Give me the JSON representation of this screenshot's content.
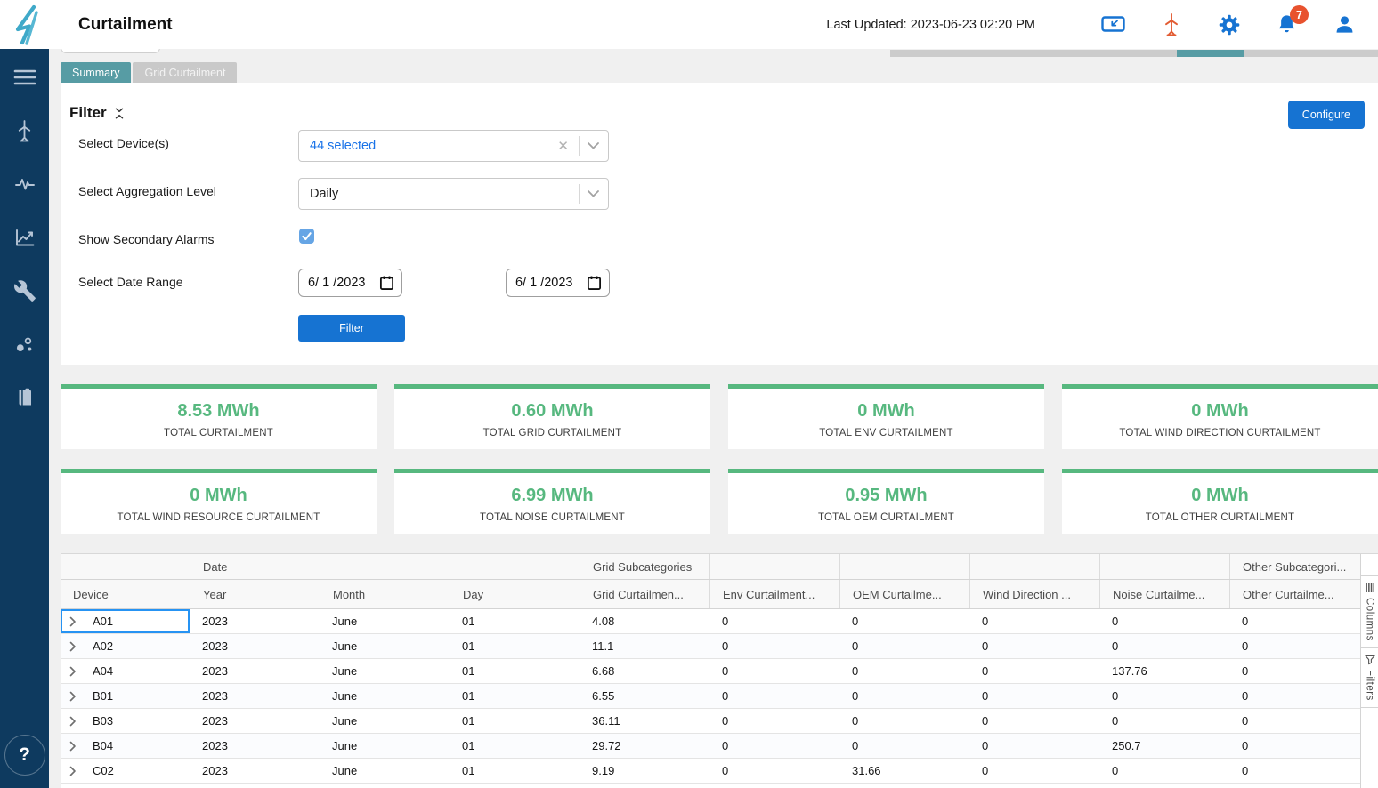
{
  "header": {
    "app_title": "Curtailment",
    "last_updated": "Last Updated: 2023-06-23 02:20 PM",
    "notification_count": "7",
    "colors": {
      "icon_blue": "#1673d2",
      "turbine_orange": "#e25c33",
      "badge_red": "#e8522e",
      "logo_teal": "#3fa9c9"
    }
  },
  "sidebar": {
    "help_label": "?",
    "items": [
      "menu",
      "wind-turbine",
      "activity-pulse",
      "line-chart",
      "wrench",
      "scatter-dots",
      "logbook"
    ]
  },
  "tabs": [
    {
      "label": "Summary",
      "active": true
    },
    {
      "label": "Grid Curtailment",
      "active": false
    }
  ],
  "filter_panel": {
    "title": "Filter",
    "configure_button": "Configure",
    "device_label": "Select Device(s)",
    "device_value": "44 selected",
    "aggregation_label": "Select Aggregation Level",
    "aggregation_value": "Daily",
    "secondary_alarms_label": "Show Secondary Alarms",
    "secondary_alarms_checked": true,
    "date_range_label": "Select Date Range",
    "date_start": "6/ 1 /2023",
    "date_end": "6/ 1 /2023",
    "filter_button": "Filter"
  },
  "stat_cards": [
    {
      "value": "8.53 MWh",
      "label": "TOTAL CURTAILMENT"
    },
    {
      "value": "0.60 MWh",
      "label": "TOTAL GRID CURTAILMENT"
    },
    {
      "value": "0 MWh",
      "label": "TOTAL ENV CURTAILMENT"
    },
    {
      "value": "0 MWh",
      "label": "TOTAL WIND DIRECTION CURTAILMENT"
    },
    {
      "value": "0 MWh",
      "label": "TOTAL WIND RESOURCE CURTAILMENT"
    },
    {
      "value": "6.99 MWh",
      "label": "TOTAL NOISE CURTAILMENT"
    },
    {
      "value": "0.95 MWh",
      "label": "TOTAL OEM CURTAILMENT"
    },
    {
      "value": "0 MWh",
      "label": "TOTAL OTHER CURTAILMENT"
    }
  ],
  "accent_colors": {
    "card_green": "#57b87f",
    "tab_teal": "#579ca4",
    "button_blue": "#1673d2"
  },
  "table": {
    "group_headers": [
      {
        "label": "",
        "span": 1
      },
      {
        "label": "Date",
        "span": 3
      },
      {
        "label": "Grid Subcategories",
        "span": 1
      },
      {
        "label": "",
        "span": 1
      },
      {
        "label": "",
        "span": 1
      },
      {
        "label": "",
        "span": 1
      },
      {
        "label": "",
        "span": 1
      },
      {
        "label": "Other Subcategori...",
        "span": 1
      }
    ],
    "columns": [
      "Device",
      "Year",
      "Month",
      "Day",
      "Grid Curtailmen...",
      "Env Curtailment...",
      "OEM Curtailme...",
      "Wind Direction ...",
      "Noise Curtailme...",
      "Other Curtailme..."
    ],
    "rows": [
      [
        "A01",
        "2023",
        "June",
        "01",
        "4.08",
        "0",
        "0",
        "0",
        "0",
        "0"
      ],
      [
        "A02",
        "2023",
        "June",
        "01",
        "11.1",
        "0",
        "0",
        "0",
        "0",
        "0"
      ],
      [
        "A04",
        "2023",
        "June",
        "01",
        "6.68",
        "0",
        "0",
        "0",
        "137.76",
        "0"
      ],
      [
        "B01",
        "2023",
        "June",
        "01",
        "6.55",
        "0",
        "0",
        "0",
        "0",
        "0"
      ],
      [
        "B03",
        "2023",
        "June",
        "01",
        "36.11",
        "0",
        "0",
        "0",
        "0",
        "0"
      ],
      [
        "B04",
        "2023",
        "June",
        "01",
        "29.72",
        "0",
        "0",
        "0",
        "250.7",
        "0"
      ],
      [
        "C02",
        "2023",
        "June",
        "01",
        "9.19",
        "0",
        "31.66",
        "0",
        "0",
        "0"
      ]
    ],
    "focused_cell": {
      "row": 0,
      "col": 0
    },
    "side_panel": [
      {
        "label": "Columns"
      },
      {
        "label": "Filters"
      }
    ]
  }
}
